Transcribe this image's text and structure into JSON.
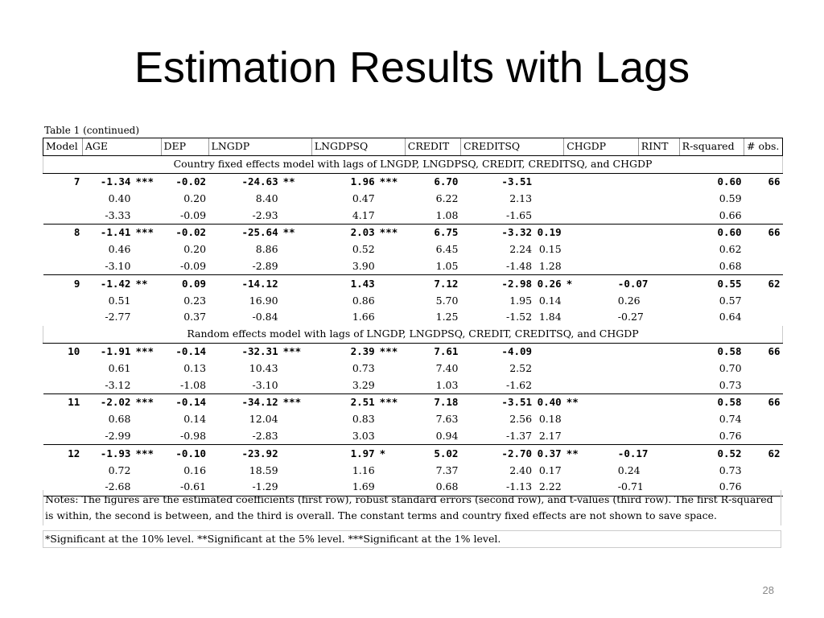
{
  "title": "Estimation Results with Lags",
  "caption": "Table 1 (continued)",
  "headers": [
    "Model",
    "AGE",
    "",
    "DEP",
    "LNGDP",
    "",
    "LNGDPSQ",
    "",
    "CREDIT",
    "CREDITSQ",
    "",
    "CHGDP",
    "",
    "RINT",
    "R-squared",
    "# obs."
  ],
  "sections": [
    {
      "label": "Country fixed effects model with lags of LNGDP, LNGDPSQ, CREDIT, CREDITSQ, and CHGDP",
      "models": [
        {
          "model": "7",
          "coef": [
            "-1.34",
            "***",
            "-0.02",
            "-24.63",
            "**",
            "1.96",
            "***",
            "6.70",
            "-3.51",
            "",
            "",
            "",
            "",
            "0.60",
            "66"
          ],
          "se": [
            "0.40",
            "",
            "0.20",
            "8.40",
            "",
            "0.47",
            "",
            "6.22",
            "2.13",
            "",
            "",
            "",
            "",
            "0.59",
            ""
          ],
          "t": [
            "-3.33",
            "",
            "-0.09",
            "-2.93",
            "",
            "4.17",
            "",
            "1.08",
            "-1.65",
            "",
            "",
            "",
            "",
            "0.66",
            ""
          ]
        },
        {
          "model": "8",
          "coef": [
            "-1.41",
            "***",
            "-0.02",
            "-25.64",
            "**",
            "2.03",
            "***",
            "6.75",
            "-3.32",
            "0.19",
            "",
            "",
            "",
            "0.60",
            "66"
          ],
          "se": [
            "0.46",
            "",
            "0.20",
            "8.86",
            "",
            "0.52",
            "",
            "6.45",
            "2.24",
            "0.15",
            "",
            "",
            "",
            "0.62",
            ""
          ],
          "t": [
            "-3.10",
            "",
            "-0.09",
            "-2.89",
            "",
            "3.90",
            "",
            "1.05",
            "-1.48",
            "1.28",
            "",
            "",
            "",
            "0.68",
            ""
          ]
        },
        {
          "model": "9",
          "coef": [
            "-1.42",
            "**",
            "0.09",
            "-14.12",
            "",
            "1.43",
            "",
            "7.12",
            "-2.98",
            "0.26",
            "*",
            "-0.07",
            "",
            "0.55",
            "62"
          ],
          "se": [
            "0.51",
            "",
            "0.23",
            "16.90",
            "",
            "0.86",
            "",
            "5.70",
            "1.95",
            "0.14",
            "",
            "0.26",
            "",
            "0.57",
            ""
          ],
          "t": [
            "-2.77",
            "",
            "0.37",
            "-0.84",
            "",
            "1.66",
            "",
            "1.25",
            "-1.52",
            "1.84",
            "",
            "-0.27",
            "",
            "0.64",
            ""
          ]
        }
      ]
    },
    {
      "label": "Random effects model with lags of LNGDP, LNGDPSQ, CREDIT, CREDITSQ, and CHGDP",
      "models": [
        {
          "model": "10",
          "coef": [
            "-1.91",
            "***",
            "-0.14",
            "-32.31",
            "***",
            "2.39",
            "***",
            "7.61",
            "-4.09",
            "",
            "",
            "",
            "",
            "0.58",
            "66"
          ],
          "se": [
            "0.61",
            "",
            "0.13",
            "10.43",
            "",
            "0.73",
            "",
            "7.40",
            "2.52",
            "",
            "",
            "",
            "",
            "0.70",
            ""
          ],
          "t": [
            "-3.12",
            "",
            "-1.08",
            "-3.10",
            "",
            "3.29",
            "",
            "1.03",
            "-1.62",
            "",
            "",
            "",
            "",
            "0.73",
            ""
          ]
        },
        {
          "model": "11",
          "coef": [
            "-2.02",
            "***",
            "-0.14",
            "-34.12",
            "***",
            "2.51",
            "***",
            "7.18",
            "-3.51",
            "0.40",
            "**",
            "",
            "",
            "0.58",
            "66"
          ],
          "se": [
            "0.68",
            "",
            "0.14",
            "12.04",
            "",
            "0.83",
            "",
            "7.63",
            "2.56",
            "0.18",
            "",
            "",
            "",
            "0.74",
            ""
          ],
          "t": [
            "-2.99",
            "",
            "-0.98",
            "-2.83",
            "",
            "3.03",
            "",
            "0.94",
            "-1.37",
            "2.17",
            "",
            "",
            "",
            "0.76",
            ""
          ]
        },
        {
          "model": "12",
          "coef": [
            "-1.93",
            "***",
            "-0.10",
            "-23.92",
            "",
            "1.97",
            "*",
            "5.02",
            "-2.70",
            "0.37",
            "**",
            "-0.17",
            "",
            "0.52",
            "62"
          ],
          "se": [
            "0.72",
            "",
            "0.16",
            "18.59",
            "",
            "1.16",
            "",
            "7.37",
            "2.40",
            "0.17",
            "",
            "0.24",
            "",
            "0.73",
            ""
          ],
          "t": [
            "-2.68",
            "",
            "-0.61",
            "-1.29",
            "",
            "1.69",
            "",
            "0.68",
            "-1.13",
            "2.22",
            "",
            "-0.71",
            "",
            "0.76",
            ""
          ]
        }
      ]
    }
  ],
  "notes": "Notes:  The figures are the estimated coefficients (first row), robust standard errors (second row), and t-values (third row).  The first R-squared is within, the second is between, and the third is overall.  The constant terms and country fixed effects are not shown to save space.",
  "significance": "*Significant at the 10% level.  **Significant at the 5% level.  ***Significant at the 1% level.",
  "page_number": "28"
}
